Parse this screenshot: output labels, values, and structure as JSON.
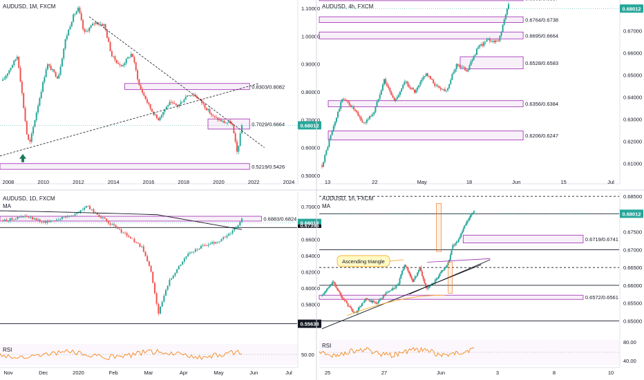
{
  "colors": {
    "up": "#26a69a",
    "down": "#ef5350",
    "zone": "#9c27b0",
    "zone_fill": "rgba(156,39,176,0.07)",
    "price_tag": "#26a69a",
    "black_tag": "#131722",
    "rsi": "#f57c00",
    "ma": "#131722",
    "yellow": "#f9a825",
    "orange_box": "#e65100"
  },
  "chart_data": [
    {
      "type": "candlestick",
      "title": "AUDUSD, 1M, FXCM",
      "x_range": [
        2007.5,
        2024.2
      ],
      "x_ticks": [
        "2008",
        "2010",
        "2012",
        "2014",
        "2016",
        "2018",
        "2020",
        "2022",
        "2024"
      ],
      "y_range": [
        0.48,
        1.13
      ],
      "y_ticks": [
        "1.10000",
        "1.00000",
        "0.90000",
        "0.80000",
        "0.70000",
        "0.60000",
        "0.50000"
      ],
      "zones": [
        {
          "label": "0.8303/0.8082",
          "lo": 0.8082,
          "hi": 0.8303
        },
        {
          "label": "0.7029/0.6664",
          "lo": 0.6664,
          "hi": 0.7029
        },
        {
          "label": "0.5219/0.5426",
          "lo": 0.5219,
          "hi": 0.5426
        }
      ],
      "last_price": "0.68012",
      "annotation": "up-arrow-2008",
      "series": [
        [
          2007.5,
          0.84
        ],
        [
          2008.3,
          0.93
        ],
        [
          2008.8,
          0.65
        ],
        [
          2008.95,
          0.61
        ],
        [
          2009.3,
          0.72
        ],
        [
          2009.9,
          0.9
        ],
        [
          2010.5,
          0.85
        ],
        [
          2010.9,
          0.99
        ],
        [
          2011.3,
          1.07
        ],
        [
          2011.6,
          1.1
        ],
        [
          2011.9,
          1.01
        ],
        [
          2012.5,
          1.05
        ],
        [
          2013.0,
          1.04
        ],
        [
          2013.4,
          0.93
        ],
        [
          2013.9,
          0.89
        ],
        [
          2014.5,
          0.94
        ],
        [
          2014.9,
          0.82
        ],
        [
          2015.5,
          0.74
        ],
        [
          2015.9,
          0.7
        ],
        [
          2016.5,
          0.76
        ],
        [
          2017.0,
          0.75
        ],
        [
          2017.5,
          0.79
        ],
        [
          2017.9,
          0.79
        ],
        [
          2018.3,
          0.76
        ],
        [
          2018.9,
          0.71
        ],
        [
          2019.5,
          0.69
        ],
        [
          2019.9,
          0.69
        ],
        [
          2020.2,
          0.58
        ],
        [
          2020.45,
          0.68
        ]
      ]
    },
    {
      "type": "candlestick",
      "title": "AUDUSD, 4h, FXCM",
      "x_ticks": [
        "13",
        "22",
        "May",
        "18",
        "Jun",
        "15",
        "Jul"
      ],
      "y_range": [
        0.602,
        0.684
      ],
      "y_ticks": [
        "0.68000",
        "0.67000",
        "0.66000",
        "0.65000",
        "0.64000",
        "0.63000",
        "0.62000",
        "0.61000"
      ],
      "zones": [
        {
          "label": "0.6858/0.6837",
          "lo": 0.6837,
          "hi": 0.6858
        },
        {
          "label": "0.6764/0.6738",
          "lo": 0.6738,
          "hi": 0.6764
        },
        {
          "label": "0.6695/0.6664",
          "lo": 0.6664,
          "hi": 0.6695
        },
        {
          "label": "0.6528/0.6583",
          "lo": 0.6528,
          "hi": 0.6583
        },
        {
          "label": "0.6356/0.6384",
          "lo": 0.6356,
          "hi": 0.6384
        },
        {
          "label": "0.6206/0.6247",
          "lo": 0.6206,
          "hi": 0.6247
        }
      ],
      "last_price": "0.68012",
      "series": [
        [
          0,
          0.609
        ],
        [
          0.05,
          0.625
        ],
        [
          0.1,
          0.64
        ],
        [
          0.15,
          0.635
        ],
        [
          0.2,
          0.628
        ],
        [
          0.25,
          0.633
        ],
        [
          0.3,
          0.648
        ],
        [
          0.35,
          0.638
        ],
        [
          0.4,
          0.647
        ],
        [
          0.45,
          0.642
        ],
        [
          0.5,
          0.651
        ],
        [
          0.55,
          0.645
        ],
        [
          0.6,
          0.643
        ],
        [
          0.65,
          0.655
        ],
        [
          0.7,
          0.652
        ],
        [
          0.75,
          0.662
        ],
        [
          0.8,
          0.666
        ],
        [
          0.85,
          0.665
        ],
        [
          0.9,
          0.682
        ]
      ]
    },
    {
      "type": "candlestick",
      "title": "AUDUSD, 1D, FXCM",
      "indicator": "MA",
      "x_ticks": [
        "Nov",
        "Dec",
        "2020",
        "Feb",
        "Mar",
        "Apr",
        "May",
        "Jun",
        "Jul"
      ],
      "y_range": [
        0.545,
        0.718
      ],
      "y_ticks": [
        "0.70000",
        "0.68000",
        "0.66000",
        "0.64000",
        "0.62000",
        "0.60000",
        "0.58000"
      ],
      "zones": [
        {
          "label": "0.6883/0.6824",
          "lo": 0.6824,
          "hi": 0.6883
        }
      ],
      "lines": [
        0.6745,
        0.5564
      ],
      "last_price": "0.68012",
      "level_tag": "0.55638",
      "hidden_tag": "0.67396",
      "rsi": {
        "label": "RSI",
        "tick": "50.00"
      },
      "series": [
        [
          0,
          0.683
        ],
        [
          0.08,
          0.688
        ],
        [
          0.15,
          0.681
        ],
        [
          0.2,
          0.685
        ],
        [
          0.27,
          0.692
        ],
        [
          0.3,
          0.701
        ],
        [
          0.35,
          0.688
        ],
        [
          0.4,
          0.676
        ],
        [
          0.45,
          0.664
        ],
        [
          0.5,
          0.65
        ],
        [
          0.53,
          0.625
        ],
        [
          0.56,
          0.57
        ],
        [
          0.6,
          0.61
        ],
        [
          0.66,
          0.64
        ],
        [
          0.72,
          0.652
        ],
        [
          0.78,
          0.658
        ],
        [
          0.83,
          0.671
        ],
        [
          0.86,
          0.684
        ]
      ]
    },
    {
      "type": "candlestick",
      "title": "AUDUSD, 1h, FXCM",
      "indicator": "MA",
      "x_ticks": [
        "25",
        "27",
        "Jun",
        "3",
        "8",
        "10"
      ],
      "y_range": [
        0.6466,
        0.6862
      ],
      "y_ticks": [
        "0.68500",
        "0.68012",
        "0.67500",
        "0.67000",
        "0.66500",
        "0.66000",
        "0.65500",
        "0.65000"
      ],
      "zones": [
        {
          "label": "0.6719/0.6741",
          "lo": 0.6719,
          "hi": 0.6741
        },
        {
          "label": "0.6572/0.6561",
          "lo": 0.6561,
          "hi": 0.6572
        }
      ],
      "lines": [
        0.685,
        0.6801,
        0.67,
        0.665,
        0.66,
        0.65
      ],
      "last_price": "0.68012",
      "annotation": "Ascending triangle",
      "rsi": {
        "label": "RSI",
        "ticks": [
          "80.00",
          "40.00"
        ]
      },
      "series": [
        [
          0,
          0.657
        ],
        [
          0.05,
          0.661
        ],
        [
          0.1,
          0.656
        ],
        [
          0.15,
          0.652
        ],
        [
          0.2,
          0.656
        ],
        [
          0.25,
          0.655
        ],
        [
          0.3,
          0.658
        ],
        [
          0.35,
          0.66
        ],
        [
          0.38,
          0.666
        ],
        [
          0.42,
          0.661
        ],
        [
          0.45,
          0.665
        ],
        [
          0.48,
          0.659
        ],
        [
          0.52,
          0.661
        ],
        [
          0.55,
          0.664
        ],
        [
          0.58,
          0.666
        ],
        [
          0.6,
          0.671
        ],
        [
          0.63,
          0.673
        ],
        [
          0.66,
          0.677
        ],
        [
          0.7,
          0.681
        ]
      ]
    }
  ]
}
